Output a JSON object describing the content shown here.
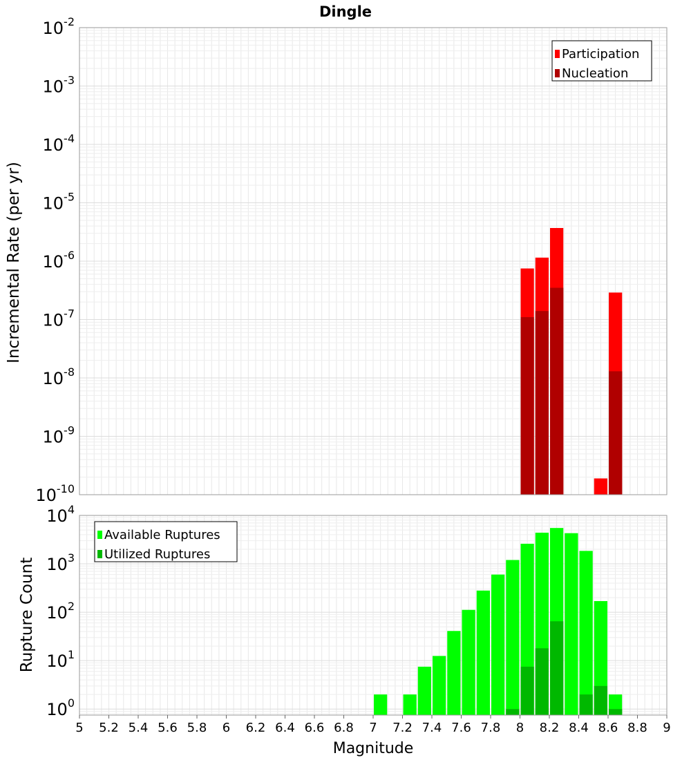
{
  "chart_data": [
    {
      "type": "bar",
      "title": "Dingle",
      "xlabel": "",
      "ylabel": "Incremental Rate (per yr)",
      "xlim": [
        5,
        9
      ],
      "ylim": [
        1e-10,
        0.01
      ],
      "yscale": "log",
      "bin_width": 0.1,
      "ytick_exponents": [
        "-2",
        "-3",
        "-4",
        "-5",
        "-6",
        "-7",
        "-8",
        "-9",
        "-10"
      ],
      "legend_position": "top-right",
      "grid": true,
      "series": [
        {
          "name": "Participation",
          "color": "#ff0000",
          "x": [
            8.05,
            8.15,
            8.25,
            8.55,
            8.65
          ],
          "values": [
            7.5e-07,
            1.15e-06,
            3.7e-06,
            1.9e-10,
            2.9e-07
          ]
        },
        {
          "name": "Nucleation",
          "color": "#b00000",
          "x": [
            8.05,
            8.15,
            8.25,
            8.65
          ],
          "values": [
            1.1e-07,
            1.4e-07,
            3.5e-07,
            1.3e-08
          ]
        }
      ]
    },
    {
      "type": "bar",
      "title": "",
      "xlabel": "Magnitude",
      "ylabel": "Rupture Count",
      "xlim": [
        5,
        9
      ],
      "ylim": [
        0.75,
        10000
      ],
      "yscale": "log",
      "bin_width": 0.1,
      "xticks": [
        "5",
        "5.2",
        "5.4",
        "5.6",
        "5.8",
        "6",
        "6.2",
        "6.4",
        "6.6",
        "6.8",
        "7",
        "7.2",
        "7.4",
        "7.6",
        "7.8",
        "8",
        "8.2",
        "8.4",
        "8.6",
        "8.8",
        "9"
      ],
      "ytick_exponents": [
        "4",
        "3",
        "2",
        "1",
        "0"
      ],
      "legend_position": "top-left",
      "grid": true,
      "series": [
        {
          "name": "Available Ruptures",
          "color": "#00ff00",
          "x": [
            7.05,
            7.25,
            7.35,
            7.45,
            7.55,
            7.65,
            7.75,
            7.85,
            7.95,
            8.05,
            8.15,
            8.25,
            8.35,
            8.45,
            8.55,
            8.65
          ],
          "values": [
            2,
            2,
            7.5,
            12.5,
            41,
            112,
            280,
            600,
            1200,
            2600,
            4400,
            5500,
            4300,
            1850,
            170,
            2
          ]
        },
        {
          "name": "Utilized Ruptures",
          "color": "#00b800",
          "x": [
            7.95,
            8.05,
            8.15,
            8.25,
            8.45,
            8.55,
            8.65
          ],
          "values": [
            1,
            7.5,
            18,
            65,
            2,
            3,
            1
          ]
        }
      ]
    }
  ]
}
